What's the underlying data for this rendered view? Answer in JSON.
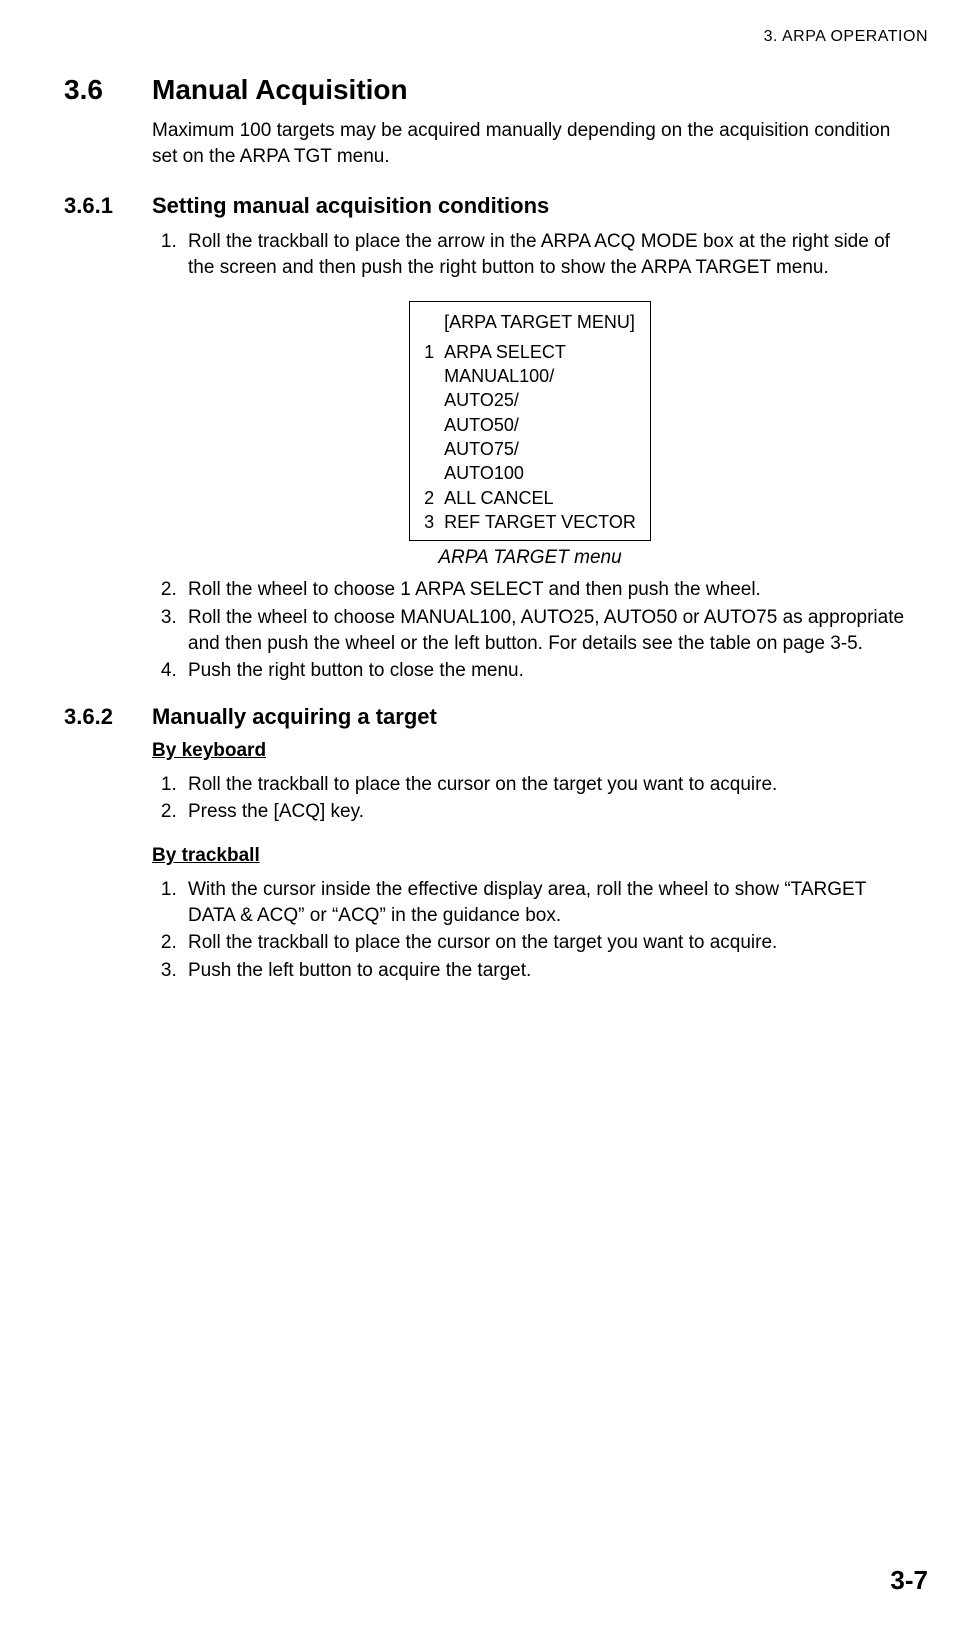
{
  "header": {
    "chapter": "3.  ARPA  OPERATION"
  },
  "section": {
    "num": "3.6",
    "title": "Manual Acquisition",
    "intro": "Maximum 100 targets may be acquired manually depending on the acquisition condition set on the ARPA TGT menu."
  },
  "sub1": {
    "num": "3.6.1",
    "title": "Setting manual acquisition conditions",
    "steps_a": [
      "Roll the trackball to place the arrow in the ARPA ACQ MODE box at the right side of the screen and then push the right button to show the ARPA TARGET menu."
    ],
    "menu": {
      "title": "[ARPA TARGET MENU]",
      "items": [
        {
          "n": "1",
          "label": "ARPA SELECT",
          "sub": [
            "MANUAL100/",
            "AUTO25/",
            "AUTO50/",
            "AUTO75/",
            "AUTO100"
          ]
        },
        {
          "n": "2",
          "label": "ALL CANCEL",
          "sub": []
        },
        {
          "n": "3",
          "label": "REF TARGET VECTOR",
          "sub": []
        }
      ],
      "caption": "ARPA TARGET menu"
    },
    "steps_b": [
      "Roll the wheel to choose 1 ARPA SELECT and then push the wheel.",
      "Roll the wheel to choose MANUAL100, AUTO25, AUTO50 or AUTO75 as appropriate and then push the wheel or the left button. For details see the table on page 3-5.",
      "Push the right button to close the menu."
    ]
  },
  "sub2": {
    "num": "3.6.2",
    "title": "Manually acquiring a target",
    "kb_heading": "By keyboard",
    "kb_steps": [
      "Roll the trackball to place the cursor on the target you want to acquire.",
      "Press the [ACQ] key."
    ],
    "tb_heading": "By trackball",
    "tb_steps": [
      "With the cursor inside the effective display area, roll the wheel to show “TARGET DATA & ACQ” or “ACQ” in the guidance box.",
      "Roll the trackball to place the cursor on the target you want to acquire.",
      "Push the left button to acquire the target."
    ]
  },
  "footer": {
    "page": "3-7"
  }
}
